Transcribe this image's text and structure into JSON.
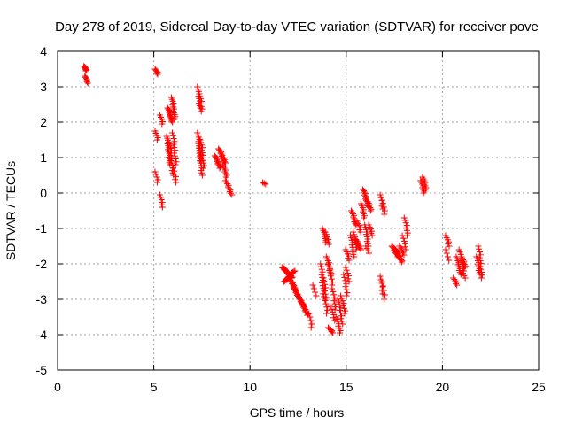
{
  "chart_data": {
    "type": "scatter",
    "title": "Day 278 of 2019, Sidereal Day-to-day VTEC variation (SDTVAR) for receiver pove",
    "xlabel": "GPS time / hours",
    "ylabel": "SDTVAR / TECUs",
    "xlim": [
      0,
      25
    ],
    "ylim": [
      -5,
      4
    ],
    "xticks": [
      "0",
      "5",
      "10",
      "15",
      "20",
      "25"
    ],
    "yticks": [
      "-5",
      "-4",
      "-3",
      "-2",
      "-1",
      "0",
      "1",
      "2",
      "3",
      "4"
    ],
    "grid": true,
    "marker": "+",
    "color": "#ff0000",
    "series": [
      {
        "name": "SDTVAR",
        "segments": [
          {
            "x0": 1.4,
            "y0": 3.58,
            "x1": 1.5,
            "y1": 3.45,
            "n": 8
          },
          {
            "x0": 1.45,
            "y0": 3.3,
            "x1": 1.55,
            "y1": 3.1,
            "n": 7
          },
          {
            "x0": 5.1,
            "y0": 3.5,
            "x1": 5.2,
            "y1": 3.35,
            "n": 6
          },
          {
            "x0": 5.1,
            "y0": 1.75,
            "x1": 5.2,
            "y1": 1.5,
            "n": 5
          },
          {
            "x0": 5.1,
            "y0": 0.6,
            "x1": 5.2,
            "y1": 0.3,
            "n": 5
          },
          {
            "x0": 5.35,
            "y0": 2.2,
            "x1": 5.45,
            "y1": 1.95,
            "n": 5
          },
          {
            "x0": 5.35,
            "y0": -0.05,
            "x1": 5.45,
            "y1": -0.4,
            "n": 6
          },
          {
            "x0": 5.75,
            "y0": 2.4,
            "x1": 5.95,
            "y1": 2.0,
            "n": 14
          },
          {
            "x0": 5.7,
            "y0": 1.6,
            "x1": 5.85,
            "y1": 0.8,
            "n": 16
          },
          {
            "x0": 5.85,
            "y0": 1.4,
            "x1": 6.0,
            "y1": 0.5,
            "n": 14
          },
          {
            "x0": 5.95,
            "y0": 2.7,
            "x1": 6.1,
            "y1": 2.1,
            "n": 12
          },
          {
            "x0": 6.0,
            "y0": 1.7,
            "x1": 6.15,
            "y1": 0.8,
            "n": 12
          },
          {
            "x0": 6.05,
            "y0": 0.7,
            "x1": 6.15,
            "y1": 0.3,
            "n": 6
          },
          {
            "x0": 7.3,
            "y0": 3.0,
            "x1": 7.4,
            "y1": 2.4,
            "n": 10
          },
          {
            "x0": 7.4,
            "y0": 2.8,
            "x1": 7.5,
            "y1": 2.3,
            "n": 8
          },
          {
            "x0": 7.3,
            "y0": 1.7,
            "x1": 7.45,
            "y1": 0.9,
            "n": 14
          },
          {
            "x0": 7.35,
            "y0": 1.4,
            "x1": 7.5,
            "y1": 0.5,
            "n": 14
          },
          {
            "x0": 7.45,
            "y0": 1.5,
            "x1": 7.6,
            "y1": 0.7,
            "n": 12
          },
          {
            "x0": 8.2,
            "y0": 1.05,
            "x1": 8.45,
            "y1": 0.7,
            "n": 12
          },
          {
            "x0": 8.4,
            "y0": 1.25,
            "x1": 8.7,
            "y1": 0.85,
            "n": 14
          },
          {
            "x0": 8.6,
            "y0": 0.8,
            "x1": 8.8,
            "y1": 0.45,
            "n": 8
          },
          {
            "x0": 8.75,
            "y0": 0.35,
            "x1": 9.05,
            "y1": -0.05,
            "n": 10
          },
          {
            "x0": 10.7,
            "y0": 0.3,
            "x1": 10.8,
            "y1": 0.25,
            "n": 3
          },
          {
            "x0": 11.7,
            "y0": -2.1,
            "x1": 12.2,
            "y1": -2.4,
            "n": 22
          },
          {
            "x0": 11.8,
            "y0": -2.5,
            "x1": 12.3,
            "y1": -2.2,
            "n": 18
          },
          {
            "x0": 12.1,
            "y0": -2.45,
            "x1": 12.35,
            "y1": -2.7,
            "n": 10
          },
          {
            "x0": 12.3,
            "y0": -2.7,
            "x1": 12.8,
            "y1": -3.2,
            "n": 20
          },
          {
            "x0": 12.7,
            "y0": -3.1,
            "x1": 13.0,
            "y1": -3.45,
            "n": 12
          },
          {
            "x0": 13.1,
            "y0": -3.4,
            "x1": 13.2,
            "y1": -3.8,
            "n": 5
          },
          {
            "x0": 13.3,
            "y0": -2.6,
            "x1": 13.4,
            "y1": -2.9,
            "n": 4
          },
          {
            "x0": 13.8,
            "y0": -1.0,
            "x1": 13.95,
            "y1": -1.4,
            "n": 8
          },
          {
            "x0": 13.95,
            "y0": -1.1,
            "x1": 14.1,
            "y1": -1.45,
            "n": 6
          },
          {
            "x0": 13.7,
            "y0": -2.0,
            "x1": 13.85,
            "y1": -3.0,
            "n": 14
          },
          {
            "x0": 13.85,
            "y0": -2.4,
            "x1": 14.0,
            "y1": -3.4,
            "n": 12
          },
          {
            "x0": 14.0,
            "y0": -1.8,
            "x1": 14.2,
            "y1": -2.3,
            "n": 10
          },
          {
            "x0": 14.1,
            "y0": -2.0,
            "x1": 14.3,
            "y1": -2.6,
            "n": 8
          },
          {
            "x0": 14.1,
            "y0": -3.8,
            "x1": 14.3,
            "y1": -3.95,
            "n": 6
          },
          {
            "x0": 14.2,
            "y0": -3.2,
            "x1": 14.4,
            "y1": -3.6,
            "n": 6
          },
          {
            "x0": 14.3,
            "y0": -2.7,
            "x1": 14.45,
            "y1": -3.3,
            "n": 8
          },
          {
            "x0": 14.5,
            "y0": -3.5,
            "x1": 14.7,
            "y1": -3.95,
            "n": 8
          },
          {
            "x0": 14.6,
            "y0": -3.0,
            "x1": 14.8,
            "y1": -3.7,
            "n": 10
          },
          {
            "x0": 14.75,
            "y0": -2.9,
            "x1": 14.95,
            "y1": -3.4,
            "n": 8
          },
          {
            "x0": 14.9,
            "y0": -2.3,
            "x1": 15.05,
            "y1": -2.9,
            "n": 8
          },
          {
            "x0": 15.0,
            "y0": -2.1,
            "x1": 15.15,
            "y1": -2.5,
            "n": 6
          },
          {
            "x0": 15.0,
            "y0": -1.6,
            "x1": 15.15,
            "y1": -1.9,
            "n": 6
          },
          {
            "x0": 15.3,
            "y0": -0.5,
            "x1": 15.5,
            "y1": -0.9,
            "n": 10
          },
          {
            "x0": 15.4,
            "y0": -1.1,
            "x1": 15.55,
            "y1": -1.6,
            "n": 8
          },
          {
            "x0": 15.25,
            "y0": -1.2,
            "x1": 15.4,
            "y1": -1.8,
            "n": 10
          },
          {
            "x0": 15.5,
            "y0": -1.3,
            "x1": 15.75,
            "y1": -1.6,
            "n": 10
          },
          {
            "x0": 15.6,
            "y0": -0.8,
            "x1": 15.75,
            "y1": -1.1,
            "n": 6
          },
          {
            "x0": 15.8,
            "y0": -0.3,
            "x1": 15.95,
            "y1": -0.7,
            "n": 8
          },
          {
            "x0": 15.9,
            "y0": 0.1,
            "x1": 16.15,
            "y1": -0.4,
            "n": 14
          },
          {
            "x0": 16.0,
            "y0": -0.9,
            "x1": 16.15,
            "y1": -1.5,
            "n": 10
          },
          {
            "x0": 16.1,
            "y0": -0.2,
            "x1": 16.3,
            "y1": -0.5,
            "n": 8
          },
          {
            "x0": 16.2,
            "y0": -0.9,
            "x1": 16.35,
            "y1": -1.2,
            "n": 6
          },
          {
            "x0": 16.05,
            "y0": -1.5,
            "x1": 16.15,
            "y1": -1.7,
            "n": 4
          },
          {
            "x0": 16.8,
            "y0": -0.05,
            "x1": 16.9,
            "y1": -0.45,
            "n": 6
          },
          {
            "x0": 16.9,
            "y0": -0.2,
            "x1": 17.0,
            "y1": -0.6,
            "n": 5
          },
          {
            "x0": 16.8,
            "y0": -2.35,
            "x1": 16.9,
            "y1": -2.85,
            "n": 6
          },
          {
            "x0": 16.9,
            "y0": -2.5,
            "x1": 17.0,
            "y1": -3.0,
            "n": 5
          },
          {
            "x0": 17.4,
            "y0": -1.5,
            "x1": 17.7,
            "y1": -1.8,
            "n": 12
          },
          {
            "x0": 17.6,
            "y0": -1.6,
            "x1": 17.9,
            "y1": -1.95,
            "n": 12
          },
          {
            "x0": 17.8,
            "y0": -1.5,
            "x1": 18.0,
            "y1": -1.75,
            "n": 6
          },
          {
            "x0": 17.95,
            "y0": -1.2,
            "x1": 18.1,
            "y1": -1.6,
            "n": 6
          },
          {
            "x0": 18.05,
            "y0": -0.7,
            "x1": 18.2,
            "y1": -1.2,
            "n": 8
          },
          {
            "x0": 18.9,
            "y0": 0.35,
            "x1": 19.05,
            "y1": 0.0,
            "n": 8
          },
          {
            "x0": 19.0,
            "y0": 0.45,
            "x1": 19.15,
            "y1": 0.1,
            "n": 8
          },
          {
            "x0": 20.2,
            "y0": -1.2,
            "x1": 20.35,
            "y1": -1.5,
            "n": 6
          },
          {
            "x0": 20.2,
            "y0": -1.6,
            "x1": 20.3,
            "y1": -1.9,
            "n": 4
          },
          {
            "x0": 20.6,
            "y0": -2.4,
            "x1": 20.75,
            "y1": -2.6,
            "n": 6
          },
          {
            "x0": 20.75,
            "y0": -1.8,
            "x1": 20.95,
            "y1": -2.3,
            "n": 10
          },
          {
            "x0": 20.9,
            "y0": -1.6,
            "x1": 21.1,
            "y1": -2.2,
            "n": 10
          },
          {
            "x0": 21.0,
            "y0": -1.8,
            "x1": 21.2,
            "y1": -2.1,
            "n": 8
          },
          {
            "x0": 21.05,
            "y0": -2.2,
            "x1": 21.15,
            "y1": -2.4,
            "n": 4
          },
          {
            "x0": 21.8,
            "y0": -1.8,
            "x1": 21.95,
            "y1": -2.3,
            "n": 10
          },
          {
            "x0": 21.9,
            "y0": -1.5,
            "x1": 22.05,
            "y1": -2.4,
            "n": 12
          }
        ]
      }
    ]
  }
}
